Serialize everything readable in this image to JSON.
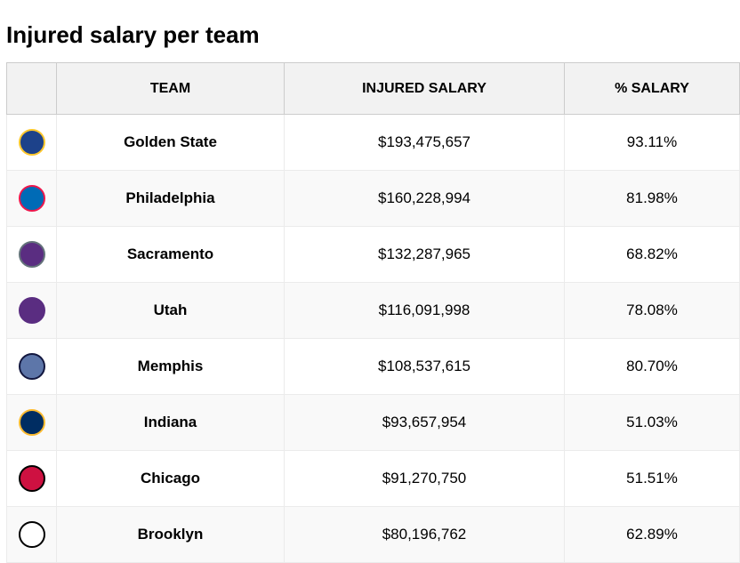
{
  "title": "Injured salary per team",
  "columns": [
    "",
    "TEAM",
    "INJURED SALARY",
    "% SALARY"
  ],
  "rows": [
    {
      "logo": "golden-state-logo",
      "color": "#1D428A",
      "accent": "#FFC72C",
      "team": "Golden State",
      "salary": "$193,475,657",
      "pct": "93.11%"
    },
    {
      "logo": "philadelphia-logo",
      "color": "#006BB6",
      "accent": "#ED174C",
      "team": "Philadelphia",
      "salary": "$160,228,994",
      "pct": "81.98%"
    },
    {
      "logo": "sacramento-logo",
      "color": "#5A2D81",
      "accent": "#63727A",
      "team": "Sacramento",
      "salary": "$132,287,965",
      "pct": "68.82%"
    },
    {
      "logo": "utah-logo",
      "color": "#5A2D81",
      "accent": "#5A2D81",
      "team": "Utah",
      "salary": "$116,091,998",
      "pct": "78.08%"
    },
    {
      "logo": "memphis-logo",
      "color": "#5D76A9",
      "accent": "#12173F",
      "team": "Memphis",
      "salary": "$108,537,615",
      "pct": "80.70%"
    },
    {
      "logo": "indiana-logo",
      "color": "#002D62",
      "accent": "#FDBB30",
      "team": "Indiana",
      "salary": "$93,657,954",
      "pct": "51.03%"
    },
    {
      "logo": "chicago-logo",
      "color": "#CE1141",
      "accent": "#000000",
      "team": "Chicago",
      "salary": "$91,270,750",
      "pct": "51.51%"
    },
    {
      "logo": "brooklyn-logo",
      "color": "#ffffff",
      "accent": "#000000",
      "team": "Brooklyn",
      "salary": "$80,196,762",
      "pct": "62.89%"
    }
  ]
}
